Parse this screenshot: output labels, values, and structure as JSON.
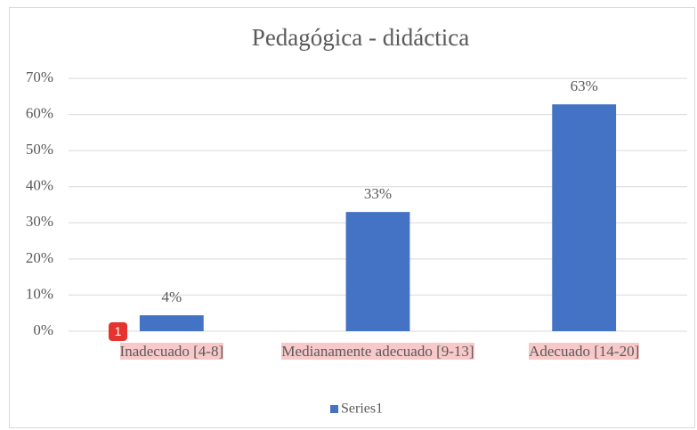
{
  "chart_data": {
    "type": "bar",
    "title": "Pedagógica - didáctica",
    "categories": [
      "Inadecuado  [4-8]",
      "Medianamente adecuado  [9-13]",
      "Adecuado  [14-20]"
    ],
    "values": [
      4.4,
      33,
      62.8
    ],
    "value_labels": [
      "4%",
      "33%",
      "63%"
    ],
    "color": "#4472c4",
    "ylim": [
      0,
      70
    ],
    "yticks": [
      {
        "value": 0,
        "label": "0%"
      },
      {
        "value": 10,
        "label": "10%"
      },
      {
        "value": 20,
        "label": "20%"
      },
      {
        "value": 30,
        "label": "30%"
      },
      {
        "value": 40,
        "label": "40%"
      },
      {
        "value": 50,
        "label": "50%"
      },
      {
        "value": 60,
        "label": "60%"
      },
      {
        "value": 70,
        "label": "70%"
      }
    ],
    "grid": true,
    "series_name": "Series1",
    "legend": "bottom"
  },
  "badge": "1"
}
